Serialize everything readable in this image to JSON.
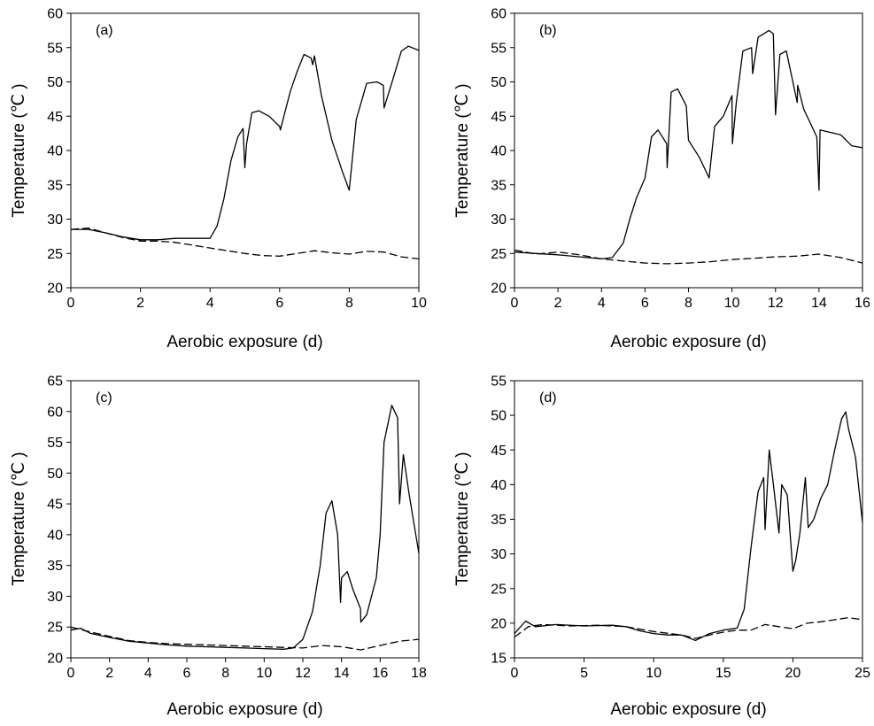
{
  "chart_data": [
    {
      "type": "line",
      "panel_label": "(a)",
      "xlabel": "Aerobic exposure (d)",
      "ylabel": "Temperature (℃ )",
      "xlim": [
        0,
        10
      ],
      "ylim": [
        20,
        60
      ],
      "xticks": [
        0,
        2,
        4,
        6,
        8,
        10
      ],
      "yticks": [
        20,
        25,
        30,
        35,
        40,
        45,
        50,
        55,
        60
      ],
      "grid": false,
      "series": [
        {
          "style": "solid",
          "x": [
            0,
            0.5,
            1,
            1.5,
            2,
            2.5,
            3,
            3.5,
            4,
            4.2,
            4.4,
            4.6,
            4.8,
            4.95,
            5.0,
            5.05,
            5.2,
            5.4,
            5.7,
            6.0,
            6.02,
            6.3,
            6.5,
            6.7,
            6.9,
            6.95,
            7.0,
            7.2,
            7.5,
            7.8,
            8.0,
            8.2,
            8.5,
            8.8,
            8.98,
            9.0,
            9.2,
            9.5,
            9.7,
            10
          ],
          "values": [
            28.5,
            28.5,
            28.0,
            27.4,
            27.0,
            27.0,
            27.2,
            27.2,
            27.2,
            29.0,
            33.0,
            38.5,
            42.0,
            43.2,
            37.5,
            41.0,
            45.5,
            45.8,
            45.0,
            43.5,
            43.0,
            48.5,
            51.5,
            54.0,
            53.5,
            52.5,
            53.8,
            48.0,
            41.5,
            37.0,
            34.2,
            44.5,
            49.8,
            50.0,
            49.5,
            46.2,
            49.5,
            54.5,
            55.2,
            54.6
          ]
        },
        {
          "style": "dashed",
          "x": [
            0,
            0.5,
            1,
            1.5,
            2,
            2.5,
            3,
            3.5,
            4,
            4.5,
            5,
            5.5,
            6,
            6.5,
            7,
            7.5,
            8,
            8.5,
            9,
            9.5,
            10
          ],
          "values": [
            28.5,
            28.7,
            28.0,
            27.3,
            26.8,
            26.8,
            26.6,
            26.2,
            25.8,
            25.4,
            25.0,
            24.7,
            24.6,
            25.0,
            25.4,
            25.1,
            24.9,
            25.3,
            25.2,
            24.5,
            24.2
          ]
        }
      ]
    },
    {
      "type": "line",
      "panel_label": "(b)",
      "xlabel": "Aerobic exposure (d)",
      "ylabel": "Temperature (℃ )",
      "xlim": [
        0,
        16
      ],
      "ylim": [
        20,
        60
      ],
      "xticks": [
        0,
        2,
        4,
        6,
        8,
        10,
        12,
        14,
        16
      ],
      "yticks": [
        20,
        25,
        30,
        35,
        40,
        45,
        50,
        55,
        60
      ],
      "grid": false,
      "series": [
        {
          "style": "solid",
          "x": [
            0,
            1,
            2,
            3,
            4,
            4.5,
            5,
            5.3,
            5.6,
            6.0,
            6.3,
            6.6,
            7.0,
            7.02,
            7.2,
            7.5,
            7.9,
            8.0,
            8.5,
            8.95,
            9.2,
            9.6,
            10.0,
            10.02,
            10.2,
            10.5,
            10.9,
            10.95,
            11.2,
            11.7,
            11.9,
            12.0,
            12.2,
            12.5,
            13.0,
            13.02,
            13.3,
            13.9,
            14.0,
            14.05,
            14.3,
            15.0,
            15.5,
            16
          ],
          "values": [
            25.2,
            25.0,
            24.8,
            24.5,
            24.2,
            24.4,
            26.5,
            30.0,
            33.0,
            36.0,
            42.0,
            43.0,
            41.0,
            37.5,
            48.5,
            49.0,
            46.5,
            41.5,
            39.0,
            36.0,
            43.5,
            45.0,
            48.0,
            41.0,
            47.0,
            54.5,
            55.0,
            51.2,
            56.5,
            57.5,
            57.0,
            45.2,
            54.0,
            54.5,
            47.0,
            49.5,
            46.0,
            42.0,
            34.2,
            43.0,
            42.8,
            42.3,
            40.7,
            40.4
          ]
        },
        {
          "style": "dashed",
          "x": [
            0,
            1,
            2,
            3,
            4,
            5,
            6,
            7,
            8,
            9,
            10,
            11,
            12,
            13,
            14,
            15,
            16
          ],
          "values": [
            25.5,
            24.9,
            25.2,
            24.8,
            24.2,
            23.9,
            23.6,
            23.5,
            23.6,
            23.8,
            24.1,
            24.3,
            24.5,
            24.6,
            24.9,
            24.4,
            23.6
          ]
        }
      ]
    },
    {
      "type": "line",
      "panel_label": "(c)",
      "xlabel": "Aerobic exposure (d)",
      "ylabel": "Temperature (℃ )",
      "xlim": [
        0,
        18
      ],
      "ylim": [
        20,
        65
      ],
      "xticks": [
        0,
        2,
        4,
        6,
        8,
        10,
        12,
        14,
        16,
        18
      ],
      "yticks": [
        20,
        25,
        30,
        35,
        40,
        45,
        50,
        55,
        60,
        65
      ],
      "grid": false,
      "series": [
        {
          "style": "solid",
          "x": [
            0,
            0.5,
            1,
            2,
            3,
            4,
            5,
            6,
            7,
            8,
            9,
            10,
            11,
            11.5,
            12,
            12.5,
            12.9,
            13.2,
            13.5,
            13.8,
            13.95,
            14.0,
            14.3,
            14.6,
            14.98,
            15.0,
            15.3,
            15.8,
            16.0,
            16.2,
            16.6,
            16.9,
            17.0,
            17.2,
            17.5,
            18
          ],
          "values": [
            24.5,
            24.8,
            24.0,
            23.3,
            22.7,
            22.4,
            22.1,
            21.9,
            21.8,
            21.7,
            21.6,
            21.5,
            21.4,
            21.6,
            23.0,
            27.5,
            35.0,
            43.5,
            45.5,
            40.0,
            29.0,
            33.0,
            34.0,
            31.0,
            28.0,
            25.8,
            27.0,
            33.0,
            40.0,
            55.0,
            61.0,
            59.0,
            45.0,
            53.0,
            46.5,
            37.0
          ]
        },
        {
          "style": "dashed",
          "x": [
            0,
            1,
            2,
            3,
            4,
            5,
            6,
            7,
            8,
            9,
            10,
            11,
            12,
            13,
            14,
            15,
            16,
            17,
            18
          ],
          "values": [
            25.0,
            24.2,
            23.5,
            22.8,
            22.5,
            22.3,
            22.2,
            22.1,
            22.0,
            21.9,
            21.8,
            21.7,
            21.6,
            22.0,
            21.8,
            21.3,
            22.0,
            22.7,
            23.0
          ]
        }
      ]
    },
    {
      "type": "line",
      "panel_label": "(d)",
      "xlabel": "Aerobic exposure (d)",
      "ylabel": "Temperature (℃ )",
      "xlim": [
        0,
        25
      ],
      "ylim": [
        15,
        55
      ],
      "xticks": [
        0,
        5,
        10,
        15,
        20,
        25
      ],
      "yticks": [
        15,
        20,
        25,
        30,
        35,
        40,
        45,
        50,
        55
      ],
      "grid": false,
      "series": [
        {
          "style": "solid",
          "x": [
            0,
            0.8,
            1.5,
            3,
            5,
            7,
            8,
            9,
            10,
            11,
            12,
            13,
            14,
            15,
            16,
            16.5,
            17.0,
            17.5,
            17.9,
            18.0,
            18.3,
            18.6,
            19.0,
            19.2,
            19.6,
            20.0,
            20.2,
            20.5,
            20.9,
            21.1,
            21.5,
            22.0,
            22.5,
            23.0,
            23.5,
            23.8,
            24.0,
            24.5,
            25
          ],
          "values": [
            18.5,
            20.3,
            19.5,
            19.8,
            19.6,
            19.7,
            19.5,
            18.9,
            18.5,
            18.3,
            18.3,
            17.5,
            18.5,
            19.0,
            19.3,
            22.0,
            31.0,
            39.0,
            41.0,
            33.5,
            45.0,
            40.0,
            33.0,
            40.0,
            38.5,
            27.5,
            29.0,
            33.0,
            41.0,
            33.8,
            35.0,
            38.0,
            40.0,
            45.0,
            49.5,
            50.5,
            48.0,
            44.0,
            34.5
          ]
        },
        {
          "style": "dashed",
          "x": [
            0,
            1,
            2,
            4,
            6,
            8,
            10,
            12,
            13,
            14,
            15,
            16,
            17,
            18,
            19,
            20,
            21,
            22,
            23,
            24,
            25
          ],
          "values": [
            18.0,
            19.5,
            19.8,
            19.6,
            19.7,
            19.5,
            18.8,
            18.3,
            17.8,
            18.3,
            18.7,
            19.0,
            19.0,
            19.8,
            19.5,
            19.2,
            20.0,
            20.2,
            20.5,
            20.8,
            20.5
          ]
        }
      ]
    }
  ]
}
